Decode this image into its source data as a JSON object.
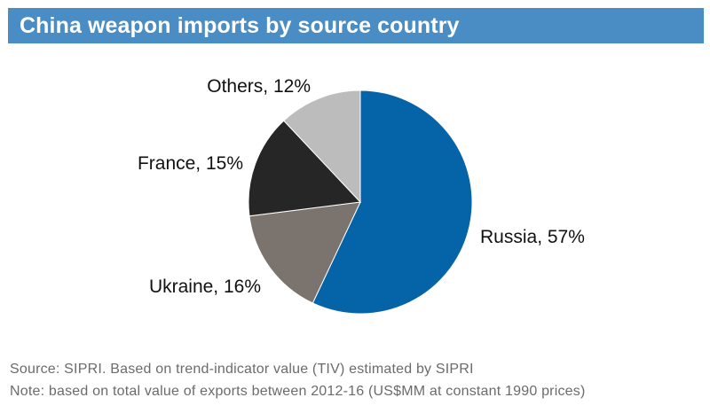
{
  "chart_data": {
    "type": "pie",
    "title": "China weapon imports by source country",
    "slices": [
      {
        "label": "Russia, 57%",
        "value": 57,
        "color": "#0563a8"
      },
      {
        "label": "Ukraine, 16%",
        "value": 16,
        "color": "#7b736d"
      },
      {
        "label": "France, 15%",
        "value": 15,
        "color": "#262626"
      },
      {
        "label": "Others, 12%",
        "value": 12,
        "color": "#bcbcbc"
      }
    ],
    "start": "12 o'clock",
    "direction": "clockwise",
    "source": "Source: SIPRI. Based on trend-indicator value (TIV) estimated by SIPRI",
    "note": "Note: based on total value of exports between 2012-16 (US$MM at constant 1990 prices)"
  }
}
